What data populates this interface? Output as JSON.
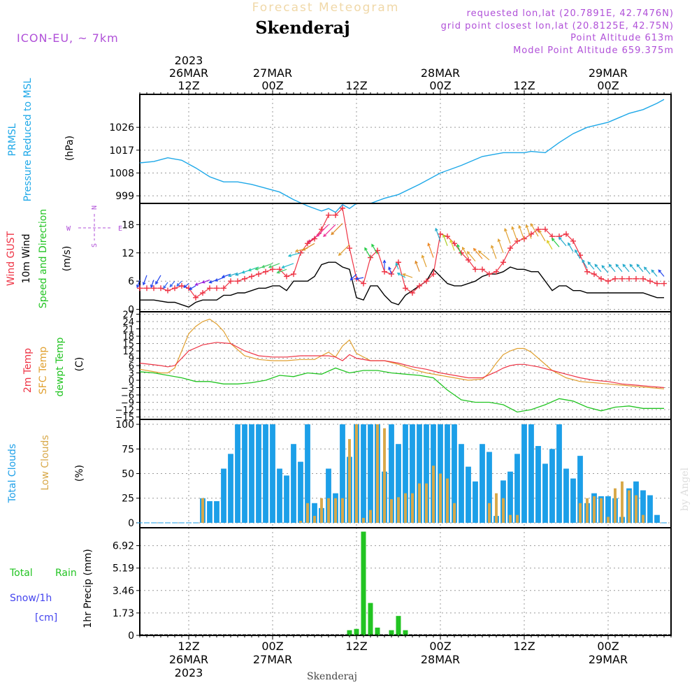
{
  "header": {
    "title": "Forecast Meteogram",
    "location": "Skenderaj",
    "model": "ICON-EU, ~ 7km",
    "requested": "requested lon,lat (20.7891E, 42.7476N)",
    "grid_point": "grid point closest lon,lat (20.8125E, 42.75N)",
    "point_altitude": "Point Altitude 613m",
    "model_altitude": "Model Point Altitude 659.375m",
    "credit": "by Angel",
    "footer_location": "Skenderaj"
  },
  "time_axis": {
    "top_labels": [
      {
        "hour": 12,
        "lines": [
          "2023",
          "26MAR",
          "12Z"
        ]
      },
      {
        "hour": 24,
        "lines": [
          "27MAR",
          "00Z"
        ]
      },
      {
        "hour": 36,
        "lines": [
          "12Z"
        ]
      },
      {
        "hour": 48,
        "lines": [
          "28MAR",
          "00Z"
        ]
      },
      {
        "hour": 60,
        "lines": [
          "12Z"
        ]
      },
      {
        "hour": 72,
        "lines": [
          "29MAR",
          "00Z"
        ]
      }
    ],
    "bottom_labels": [
      {
        "hour": 12,
        "lines": [
          "12Z",
          "26MAR",
          "2023"
        ]
      },
      {
        "hour": 24,
        "lines": [
          "00Z",
          "27MAR"
        ]
      },
      {
        "hour": 36,
        "lines": [
          "12Z"
        ]
      },
      {
        "hour": 48,
        "lines": [
          "00Z",
          "28MAR"
        ]
      },
      {
        "hour": 60,
        "lines": [
          "12Z"
        ]
      },
      {
        "hour": 72,
        "lines": [
          "00Z",
          "29MAR"
        ]
      }
    ]
  },
  "panels": {
    "pressure": {
      "ylabel_color": [
        "PRMSL",
        "Pressure Reduced to MSL"
      ],
      "unit": "(hPa)",
      "ticks": [
        "999",
        "1008",
        "1017",
        "1026"
      ]
    },
    "wind": {
      "labels": [
        "Wind GUST",
        "10m Wind",
        "Speed and Direction"
      ],
      "unit": "(m/s)",
      "ticks": [
        "0",
        "6",
        "12",
        "18"
      ],
      "compass": {
        "n": "N",
        "s": "S",
        "w": "W",
        "e": "E"
      }
    },
    "temp": {
      "labels": [
        "2m Temp",
        "SFC Temp",
        "dewpt Temp"
      ],
      "unit": "(C)",
      "ticks": [
        "−15",
        "−12",
        "−9",
        "−6",
        "−3",
        "0",
        "3",
        "6",
        "9",
        "12",
        "15",
        "18",
        "21",
        "24",
        "27"
      ]
    },
    "clouds": {
      "labels": [
        "Total Clouds",
        "Low Clouds"
      ],
      "unit": "(%)",
      "ticks": [
        "0",
        "25",
        "50",
        "75",
        "100"
      ]
    },
    "precip": {
      "labels": [
        "Total",
        "Rain",
        "Snow/1h",
        "[cm]"
      ],
      "unit": "1hr Precip (mm)",
      "ticks": [
        "0",
        "1.73",
        "3.46",
        "5.19",
        "6.92"
      ]
    }
  },
  "colors": {
    "pressure": "#1ea8e8",
    "gust": "#ee3344",
    "wind": "#000000",
    "t2m": "#ee3344",
    "sfc": "#e0a030",
    "dewpt": "#22c422",
    "total_clouds": "#1c9fe8",
    "low_clouds": "#d8a848",
    "rain": "#22c422",
    "snow": "#4444ee",
    "title": "#f0d8a8",
    "meta": "#b050d8"
  },
  "chart_data": {
    "type": "line",
    "x_unit": "hours since 2023-03-26 00Z",
    "x_start": 5,
    "x_end": 81,
    "pressure_hpa": {
      "x": [
        5,
        7,
        9,
        11,
        13,
        15,
        17,
        19,
        21,
        23,
        25,
        27,
        29,
        31,
        32,
        33,
        34,
        35,
        36,
        38,
        40,
        42,
        45,
        48,
        51,
        54,
        57,
        60,
        61,
        63,
        65,
        67,
        69,
        72,
        75,
        77,
        79,
        80
      ],
      "values": [
        1012,
        1012.5,
        1014,
        1013,
        1010,
        1006.5,
        1004.5,
        1004.5,
        1003.5,
        1002,
        1000.5,
        997.5,
        995,
        993,
        994,
        992.5,
        995.5,
        994,
        996,
        996,
        998,
        999.5,
        1003.5,
        1008,
        1011,
        1014.5,
        1016,
        1016,
        1016.5,
        1016,
        1020,
        1023.5,
        1026,
        1028,
        1031.5,
        1033,
        1035.5,
        1037
      ]
    },
    "gust_ms": {
      "x": [
        5,
        6,
        7,
        8,
        9,
        10,
        11,
        12,
        13,
        14,
        15,
        16,
        17,
        18,
        19,
        20,
        21,
        22,
        23,
        24,
        25,
        26,
        27,
        28,
        29,
        30,
        31,
        32,
        33,
        34,
        35,
        36,
        37,
        38,
        39,
        40,
        41,
        42,
        43,
        44,
        45,
        46,
        47,
        48,
        49,
        50,
        51,
        52,
        53,
        54,
        55,
        56,
        57,
        58,
        59,
        60,
        61,
        62,
        63,
        64,
        65,
        66,
        67,
        68,
        69,
        70,
        71,
        72,
        73,
        74,
        75,
        76,
        77,
        78,
        79,
        80
      ],
      "values": [
        4.5,
        4.5,
        4.5,
        4.5,
        4,
        4.5,
        5,
        4.5,
        2.5,
        3.5,
        4.5,
        4.5,
        4.5,
        6,
        6,
        6.5,
        7,
        7.5,
        8,
        8.5,
        8.5,
        7,
        7.5,
        12,
        14,
        15,
        17,
        20,
        20,
        21.5,
        13,
        6.5,
        5.5,
        11,
        12.5,
        8,
        7.5,
        10,
        4.5,
        3.5,
        5,
        6,
        7.5,
        16,
        15.5,
        14,
        12,
        10.5,
        8.5,
        8.5,
        7.5,
        8,
        10,
        13,
        14.5,
        15,
        16,
        17,
        17,
        15.5,
        15.5,
        16,
        14.5,
        11.5,
        8,
        7.5,
        6.5,
        6,
        6.5,
        6.5,
        6.5,
        6.5,
        6.5,
        6,
        5.5,
        5.5
      ]
    },
    "wind_ms": {
      "x": [
        5,
        7,
        9,
        10,
        11,
        12,
        13,
        14,
        15,
        16,
        17,
        18,
        19,
        20,
        21,
        22,
        23,
        24,
        25,
        26,
        27,
        28,
        29,
        30,
        31,
        32,
        33,
        34,
        35,
        36,
        37,
        38,
        39,
        40,
        41,
        42,
        43,
        44,
        45,
        46,
        47,
        48,
        49,
        50,
        51,
        52,
        53,
        54,
        55,
        56,
        57,
        58,
        59,
        60,
        61,
        62,
        63,
        64,
        65,
        66,
        67,
        68,
        69,
        70,
        71,
        72,
        73,
        74,
        75,
        76,
        77,
        78,
        79,
        80
      ],
      "values": [
        2,
        2,
        1.5,
        1.5,
        1,
        0.5,
        1.5,
        2,
        2,
        2,
        3,
        3,
        3.5,
        3.5,
        4,
        4.5,
        4.5,
        5,
        5,
        4,
        6,
        6,
        6,
        7,
        9.5,
        10,
        10,
        9,
        8.5,
        2.5,
        2,
        5,
        5,
        3,
        1.5,
        1,
        3,
        4,
        5,
        6,
        8.5,
        7,
        5.5,
        5,
        5,
        5.5,
        6,
        7,
        7.5,
        7.5,
        8,
        9,
        8.5,
        8.5,
        8,
        8,
        6,
        4,
        5,
        5,
        4,
        4,
        3.5,
        3.5,
        3.5,
        3.5,
        3.5,
        3.5,
        3.5,
        3.5,
        3.5,
        3,
        2.5,
        2.5
      ]
    },
    "wind_barbs": {
      "x": [
        5,
        6,
        7,
        8,
        9,
        10,
        11,
        12,
        13,
        14,
        15,
        16,
        17,
        18,
        19,
        20,
        21,
        22,
        23,
        24,
        25,
        26,
        27,
        28,
        29,
        30,
        31,
        32,
        33,
        34,
        35,
        36,
        37,
        38,
        39,
        40,
        41,
        42,
        43,
        44,
        45,
        46,
        47,
        48,
        49,
        50,
        51,
        52,
        53,
        54,
        55,
        56,
        57,
        58,
        59,
        60,
        61,
        62,
        63,
        64,
        65,
        66,
        67,
        68,
        69,
        70,
        71,
        72,
        73,
        74,
        75,
        76,
        77,
        78,
        79,
        80
      ],
      "dir_deg": [
        20,
        20,
        20,
        30,
        35,
        40,
        45,
        50,
        60,
        70,
        70,
        70,
        70,
        70,
        70,
        70,
        70,
        70,
        70,
        70,
        70,
        70,
        70,
        75,
        75,
        60,
        55,
        45,
        45,
        45,
        45,
        45,
        80,
        150,
        150,
        180,
        160,
        160,
        120,
        110,
        160,
        160,
        160,
        160,
        160,
        160,
        160,
        150,
        140,
        140,
        130,
        160,
        160,
        160,
        160,
        160,
        160,
        150,
        150,
        150,
        140,
        140,
        150,
        150,
        150,
        140,
        140,
        140,
        140,
        140,
        140,
        140,
        140,
        140,
        140,
        140
      ],
      "color_class": [
        "#2244ee",
        "#2244ee",
        "#2244ee",
        "#2244ee",
        "#3366ee",
        "#3366ee",
        "#3366ee",
        "#2244ee",
        "#2244ee",
        "#9922dd",
        "#9922dd",
        "#2244ee",
        "#2244ee",
        "#2244ee",
        "#22aacc",
        "#22aacc",
        "#22bbcc",
        "#22ccaa",
        "#44cc66",
        "#44cc66",
        "#44cc66",
        "#44cc66",
        "#22bbcc",
        "#22bbcc",
        "#e0a030",
        "#dd8822",
        "#dd2266",
        "#ee3399",
        "#ee3399",
        "#dd8822",
        "#e0a030",
        "#2244ee",
        "#2244ee",
        "#22cc44",
        "#22cc44",
        "#2244ee",
        "#2244ee",
        "#22bbcc",
        "#22bbcc",
        "#e0a030",
        "#dd8822",
        "#e0a030",
        "#ee8822",
        "#22aacc",
        "#aacc22",
        "#ddcc22",
        "#22cc44",
        "#e0a030",
        "#e0a030",
        "#ee8822",
        "#e0a030",
        "#e0a030",
        "#e0a030",
        "#e0a030",
        "#e0a030",
        "#e0a030",
        "#e0a030",
        "#e0a030",
        "#e0a030",
        "#ddcc22",
        "#22cc44",
        "#22aacc",
        "#22aacc",
        "#22aacc",
        "#22aacc",
        "#22aacc",
        "#22aacc",
        "#22aacc",
        "#22aacc",
        "#22aacc",
        "#22aacc",
        "#22aacc",
        "#22aacc",
        "#22aacc",
        "#22aacc",
        "#2244ee"
      ]
    },
    "t2m_c": {
      "x": [
        5,
        8,
        9,
        10,
        11,
        12,
        14,
        16,
        18,
        20,
        22,
        24,
        26,
        28,
        30,
        32,
        33,
        34,
        35,
        36,
        38,
        40,
        42,
        44,
        46,
        48,
        50,
        52,
        54,
        56,
        57,
        58,
        59,
        60,
        62,
        64,
        66,
        68,
        70,
        72,
        74,
        76,
        78,
        80
      ],
      "values": [
        7,
        6,
        5.5,
        6,
        9,
        12,
        14.5,
        15.5,
        15,
        12,
        10,
        9.5,
        9.5,
        10,
        10,
        10,
        9.5,
        8,
        10.5,
        9,
        8,
        8,
        7,
        5.5,
        4.5,
        3,
        2,
        1,
        1,
        3.5,
        5,
        6,
        6.5,
        6.5,
        5.5,
        4,
        2.5,
        1,
        0,
        -0.5,
        -1.5,
        -2,
        -2.5,
        -3
      ]
    },
    "sfc_c": {
      "x": [
        5,
        6,
        8,
        9,
        10,
        11,
        12,
        13,
        14,
        15,
        16,
        17,
        18,
        20,
        22,
        24,
        26,
        28,
        30,
        31,
        32,
        33,
        34,
        35,
        36,
        38,
        40,
        42,
        44,
        46,
        48,
        50,
        52,
        54,
        55,
        56,
        57,
        58,
        59,
        60,
        61,
        62,
        64,
        66,
        68,
        70,
        72,
        74,
        76,
        78,
        80
      ],
      "values": [
        4.5,
        4,
        3,
        3,
        5,
        12,
        19,
        22,
        24,
        25,
        23,
        20,
        15,
        10,
        8.5,
        8,
        8,
        8.5,
        8.5,
        10,
        11.5,
        9.5,
        14,
        16.5,
        11,
        8,
        8,
        6.5,
        4.5,
        3,
        2,
        1,
        0,
        0.5,
        3,
        7,
        10.5,
        12,
        13,
        13,
        11.5,
        9,
        4,
        1,
        -0.5,
        -1,
        -1.5,
        -2,
        -2.5,
        -3,
        -3.5
      ]
    },
    "dewpt_c": {
      "x": [
        5,
        7,
        9,
        11,
        13,
        15,
        17,
        19,
        21,
        23,
        25,
        27,
        29,
        31,
        33,
        35,
        37,
        39,
        41,
        43,
        45,
        47,
        49,
        51,
        53,
        55,
        57,
        59,
        61,
        63,
        65,
        67,
        69,
        71,
        73,
        75,
        77,
        79,
        80
      ],
      "values": [
        3.5,
        3,
        2,
        1,
        -0.5,
        -0.5,
        -1.5,
        -1.5,
        -1,
        0,
        2,
        1.5,
        3,
        2.5,
        5,
        3,
        4,
        4,
        3,
        2.5,
        2,
        1,
        -4,
        -8,
        -9,
        -9,
        -10,
        -13,
        -12,
        -10,
        -7.5,
        -8.5,
        -11,
        -12.5,
        -11,
        -10.5,
        -11.5,
        -11.5,
        -11.5
      ]
    },
    "total_clouds_pct": {
      "x": [
        5,
        6,
        7,
        8,
        9,
        10,
        11,
        12,
        13,
        14,
        15,
        16,
        17,
        18,
        19,
        20,
        21,
        22,
        23,
        24,
        25,
        26,
        27,
        28,
        29,
        30,
        31,
        32,
        33,
        34,
        35,
        36,
        37,
        38,
        39,
        40,
        41,
        42,
        43,
        44,
        45,
        46,
        47,
        48,
        49,
        50,
        51,
        52,
        53,
        54,
        55,
        56,
        57,
        58,
        59,
        60,
        61,
        62,
        63,
        64,
        65,
        66,
        67,
        68,
        69,
        70,
        71,
        72,
        73,
        74,
        75,
        76,
        77,
        78,
        79,
        80
      ],
      "values": [
        0,
        0,
        0,
        0,
        0,
        0,
        0,
        0,
        0,
        25,
        22,
        22,
        55,
        70,
        100,
        100,
        100,
        100,
        100,
        100,
        55,
        48,
        80,
        62,
        100,
        20,
        15,
        55,
        30,
        100,
        67,
        100,
        100,
        100,
        100,
        52,
        100,
        80,
        100,
        100,
        100,
        100,
        100,
        100,
        100,
        100,
        80,
        57,
        42,
        80,
        72,
        7,
        43,
        52,
        70,
        100,
        100,
        78,
        60,
        75,
        100,
        55,
        45,
        68,
        20,
        30,
        27,
        27,
        25,
        6,
        35,
        42,
        33,
        28,
        8,
        0
      ]
    },
    "low_clouds_pct": {
      "x": [
        14,
        15,
        16,
        17,
        18,
        19,
        20,
        21,
        22,
        23,
        24,
        25,
        26,
        27,
        28,
        29,
        30,
        31,
        32,
        33,
        34,
        35,
        36,
        37,
        38,
        39,
        40,
        41,
        42,
        43,
        44,
        45,
        46,
        47,
        48,
        49,
        50,
        51,
        52,
        53,
        54,
        55,
        56,
        57,
        58,
        59,
        60,
        61,
        62,
        63,
        64,
        65,
        66,
        67,
        68,
        69,
        70,
        71,
        72,
        73,
        74,
        75,
        76,
        77,
        78,
        79,
        80
      ],
      "values": [
        25,
        0,
        0,
        0,
        0,
        0,
        0,
        0,
        0,
        0,
        0,
        0,
        0,
        0,
        2,
        20,
        7,
        25,
        25,
        25,
        25,
        85,
        100,
        5,
        13,
        100,
        96,
        24,
        26,
        30,
        30,
        40,
        40,
        58,
        50,
        45,
        20,
        0,
        0,
        0,
        0,
        20,
        30,
        25,
        8,
        8,
        0,
        0,
        0,
        0,
        0,
        0,
        0,
        0,
        20,
        25,
        27,
        25,
        6,
        35,
        42,
        33,
        28,
        8,
        0,
        0,
        0
      ]
    },
    "precip_rain_mm": {
      "x": [
        35,
        36,
        37,
        38,
        39,
        41,
        42,
        43
      ],
      "values": [
        0.4,
        0.5,
        8,
        2.5,
        0.6,
        0.4,
        1.5,
        0.4
      ]
    },
    "precip_snow_cm": {
      "x": [],
      "values": []
    }
  }
}
